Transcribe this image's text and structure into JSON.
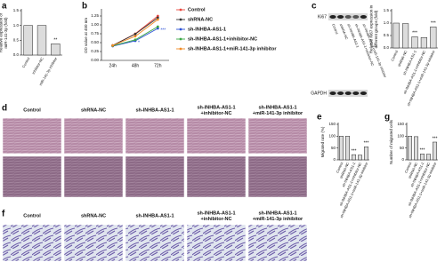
{
  "chart_data": [
    {
      "type": "bar",
      "panel_label": "a",
      "ylabel": [
        "Relative expression of",
        "miR-141-3p (fold)"
      ],
      "categories": [
        "Control",
        "inhibitor-NC",
        "miR-141-3p inhibitor"
      ],
      "values": [
        1.0,
        1.0,
        0.38
      ],
      "significance": [
        null,
        null,
        "**"
      ],
      "color": "#dcdcdc",
      "ylim": [
        0,
        1.5
      ],
      "yticks": [
        {
          "value": 0,
          "label": "0.0"
        },
        0.5,
        {
          "value": 1,
          "label": "1.0"
        },
        1.5
      ]
    },
    {
      "type": "line",
      "panel_label": "b",
      "ylabel": [
        "OD value at 450 nm"
      ],
      "categories": [
        "24h",
        "48h",
        "72h"
      ],
      "series": [
        {
          "name": "Control",
          "color": "#e8463c",
          "values": [
            0.42,
            0.75,
            1.25
          ]
        },
        {
          "name": "shRNA-NC",
          "color": "#333333",
          "values": [
            0.42,
            0.74,
            1.2
          ]
        },
        {
          "name": "sh-INHBA-AS1-1",
          "color": "#2a4fd6",
          "values": [
            0.4,
            0.55,
            0.9
          ],
          "significance": [
            null,
            "*",
            "***"
          ]
        },
        {
          "name": "sh-INHBA-AS1-1+inhibitor-NC",
          "color": "#3aa745",
          "values": [
            0.41,
            0.58,
            0.95
          ]
        },
        {
          "name": "sh-INHBA-AS1-1+miR-141-3p inhibitor",
          "color": "#f08a24",
          "values": [
            0.42,
            0.68,
            1.15
          ]
        }
      ],
      "ylim": [
        0,
        1.4
      ],
      "yticks": [
        {
          "value": 0,
          "label": "0.00"
        },
        0.25,
        {
          "value": 0.5,
          "label": "0.50"
        },
        0.75,
        {
          "value": 1,
          "label": "1.00"
        },
        1.25
      ]
    },
    {
      "type": "bar",
      "ylabel": [
        "Relative Ki67 expression in",
        "different groups (fold)"
      ],
      "categories": [
        "Control",
        "shRNA-NC",
        "sh-INHBA-AS1-1",
        "sh-INHBA-AS1-1+inhibitor-NC",
        "sh-INHBA-AS1-1+miR-141-3p inhibitor"
      ],
      "values": [
        1.0,
        0.98,
        0.45,
        0.42,
        0.85
      ],
      "significance": [
        null,
        null,
        "***",
        null,
        "***"
      ],
      "color": "#dcdcdc",
      "ylim": [
        0,
        1.5
      ],
      "yticks": [
        {
          "value": 0,
          "label": "0.0"
        },
        0.5,
        {
          "value": 1,
          "label": "1.0"
        },
        1.5
      ]
    },
    {
      "type": "bar",
      "panel_label": "e",
      "ylabel": [
        "Migrated rate (%)"
      ],
      "categories": [
        "Control",
        "shRNA-NC",
        "sh-INHBA-AS1-1",
        "sh-INHBA-AS1-1+inhibitor-NC",
        "sh-INHBA-AS1-1+miR-141-3p inhibitor"
      ],
      "values": [
        100,
        100,
        22,
        20,
        55
      ],
      "significance": [
        null,
        null,
        "***",
        null,
        "***"
      ],
      "color": "#dcdcdc",
      "ylim": [
        0,
        150
      ],
      "yticks": [
        0,
        50,
        100,
        150
      ]
    },
    {
      "type": "bar",
      "panel_label": "g",
      "ylabel": [
        "Number of migrated cells"
      ],
      "categories": [
        "Control",
        "shRNA-NC",
        "sh-INHBA-AS1-1",
        "sh-INHBA-AS1-1+inhibitor-NC",
        "sh-INHBA-AS1-1+miR-141-3p inhibitor"
      ],
      "values": [
        100,
        98,
        25,
        24,
        75
      ],
      "significance": [
        null,
        null,
        "***",
        null,
        "***"
      ],
      "color": "#dcdcdc",
      "ylim": [
        0,
        150
      ],
      "yticks": [
        0,
        50,
        100,
        150
      ]
    }
  ],
  "blot": {
    "panel_label": "c",
    "bands": [
      "Ki67",
      "GAPDH"
    ],
    "lanes": [
      "Control",
      "shRNA-NC",
      "sh-INHBA-AS1-1",
      "sh-INHBA-AS1-1+inhibitor-NC",
      "sh-INHBA-AS1-1+miR-141-3p inhibitor"
    ]
  },
  "migration_images": {
    "panel_label": "d",
    "columns": [
      [
        "Control"
      ],
      [
        "shRNA-NC"
      ],
      [
        "sh-INHBA-AS1-1"
      ],
      [
        "sh-INHBA-AS1-1",
        "+inhibitor-NC"
      ],
      [
        "sh-INHBA-AS1-1",
        "+miR-141-3p inhibitor"
      ]
    ]
  },
  "invasion_images": {
    "panel_label": "f",
    "columns": [
      [
        "Control"
      ],
      [
        "shRNA-NC"
      ],
      [
        "sh-INHBA-AS1-1"
      ],
      [
        "sh-INHBA-AS1-1",
        "+inhibitor-NC"
      ],
      [
        "sh-INHBA-AS1-1",
        "+miR-141-3p inhibitor"
      ]
    ]
  }
}
